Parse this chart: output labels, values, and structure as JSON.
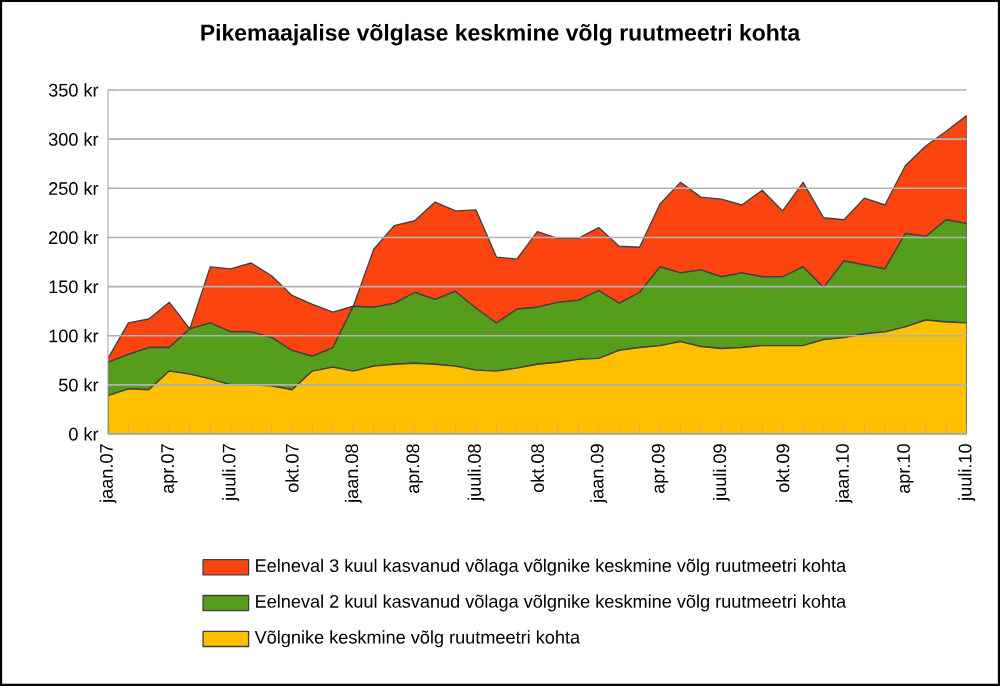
{
  "chart_data": {
    "type": "area",
    "stacked": true,
    "title": "Pikemaajalise võlglase keskmine võlg ruutmeetri kohta",
    "categories": [
      "jaan.07",
      null,
      null,
      "apr.07",
      null,
      null,
      "juuli.07",
      null,
      null,
      "okt.07",
      null,
      null,
      "jaan.08",
      null,
      null,
      "apr.08",
      null,
      null,
      "juuli.08",
      null,
      null,
      "okt.08",
      null,
      null,
      "jaan.09",
      null,
      null,
      "apr.09",
      null,
      null,
      "juuli.09",
      null,
      null,
      "okt.09",
      null,
      null,
      "jaan.10",
      null,
      null,
      "apr.10",
      null,
      null,
      "juuli.10"
    ],
    "series": [
      {
        "name": "Võlgnike keskmine võlg ruutmeetri kohta",
        "color": "#ffc000",
        "values": [
          39,
          46,
          45,
          64,
          61,
          56,
          50,
          50,
          49,
          45,
          64,
          68,
          64,
          69,
          71,
          72,
          71,
          69,
          65,
          64,
          67,
          71,
          73,
          76,
          77,
          85,
          88,
          90,
          94,
          89,
          87,
          88,
          90,
          90,
          90,
          96,
          98,
          102,
          104,
          109,
          116,
          114,
          113
        ]
      },
      {
        "name": "Eelneval 2 kuul kasvanud võlaga võlgnike keskmine võlg ruutmeetri kohta",
        "color": "#579d1c",
        "values": [
          34,
          35,
          43,
          24,
          46,
          57,
          54,
          54,
          49,
          40,
          15,
          20,
          66,
          60,
          62,
          72,
          66,
          76,
          63,
          49,
          60,
          58,
          61,
          60,
          69,
          48,
          56,
          80,
          70,
          78,
          73,
          76,
          70,
          70,
          80,
          53,
          78,
          70,
          64,
          95,
          85,
          104,
          101
        ]
      },
      {
        "name": "Eelneval 3 kuul kasvanud võlaga võlgnike keskmine võlg ruutmeetri kohta",
        "color": "#fc4411",
        "values": [
          4,
          32,
          29,
          46,
          0,
          57,
          64,
          70,
          63,
          56,
          53,
          36,
          0,
          59,
          79,
          73,
          99,
          82,
          100,
          67,
          51,
          77,
          65,
          63,
          64,
          58,
          46,
          64,
          92,
          74,
          79,
          69,
          88,
          67,
          86,
          71,
          42,
          68,
          65,
          69,
          92,
          90,
          110
        ]
      }
    ],
    "ylim": [
      0,
      350
    ],
    "yticks": [
      {
        "value": 0,
        "label": "0 kr"
      },
      {
        "value": 50,
        "label": "50 kr"
      },
      {
        "value": 100,
        "label": "100 kr"
      },
      {
        "value": 150,
        "label": "150 kr"
      },
      {
        "value": 200,
        "label": "200 kr"
      },
      {
        "value": 250,
        "label": "250 kr"
      },
      {
        "value": 300,
        "label": "300 kr"
      },
      {
        "value": 350,
        "label": "350 kr"
      }
    ],
    "grid": "y",
    "legend": "bottom"
  }
}
